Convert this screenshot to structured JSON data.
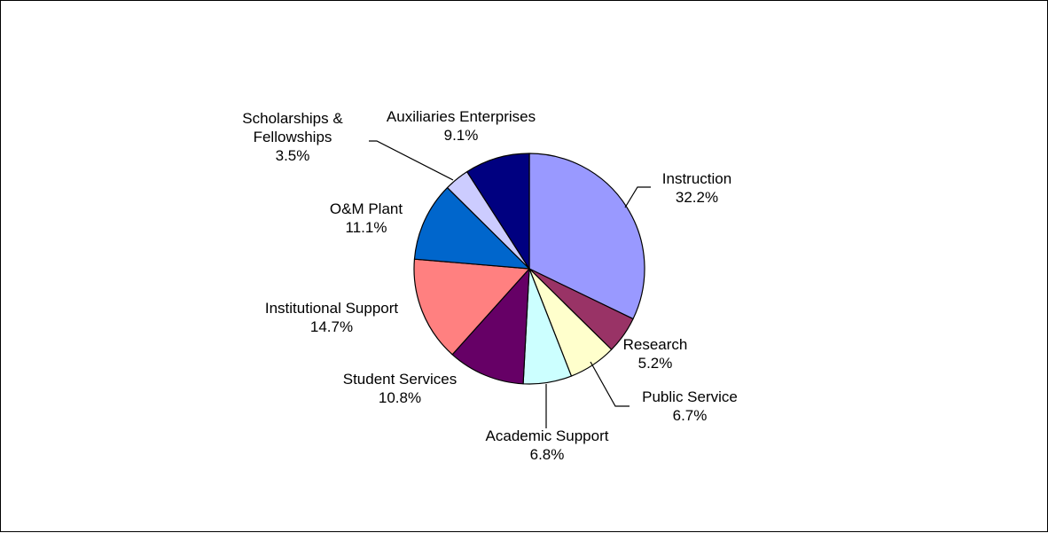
{
  "chart_data": {
    "type": "pie",
    "title": "",
    "start": "12 o'clock",
    "direction": "clockwise",
    "slices": [
      {
        "label": "Instruction",
        "value": 32.2,
        "value_label": "32.2%",
        "color": "#9999FF"
      },
      {
        "label": "Research",
        "value": 5.2,
        "value_label": "5.2%",
        "color": "#993366"
      },
      {
        "label": "Public Service",
        "value": 6.7,
        "value_label": "6.7%",
        "color": "#FFFFCC"
      },
      {
        "label": "Academic Support",
        "value": 6.8,
        "value_label": "6.8%",
        "color": "#CCFFFF"
      },
      {
        "label": "Student Services",
        "value": 10.8,
        "value_label": "10.8%",
        "color": "#660066"
      },
      {
        "label": "Institutional Support",
        "value": 14.7,
        "value_label": "14.7%",
        "color": "#FF8080"
      },
      {
        "label": "O&M Plant",
        "value": 11.1,
        "value_label": "11.1%",
        "color": "#0066CC"
      },
      {
        "label": "Scholarships & Fellowships",
        "label_lines": [
          "Scholarships &",
          "Fellowships"
        ],
        "value": 3.5,
        "value_label": "3.5%",
        "color": "#CCCCFF"
      },
      {
        "label": "Auxiliaries Enterprises",
        "value": 9.1,
        "value_label": "9.1%",
        "color": "#000080"
      }
    ],
    "legend": "none",
    "labels": "outside with leader lines"
  }
}
